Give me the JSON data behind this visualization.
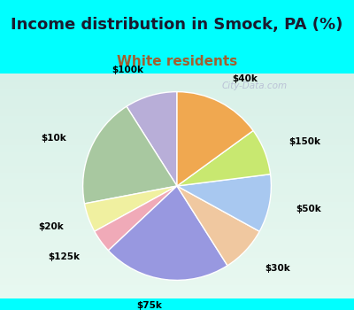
{
  "title": "Income distribution in Smock, PA (%)",
  "subtitle": "White residents",
  "title_fontsize": 13,
  "subtitle_fontsize": 11,
  "bg_color": "#00FFFF",
  "chart_bg_top": "#d8f0e8",
  "chart_bg_bottom": "#e8f8f0",
  "labels": [
    "$100k",
    "$10k",
    "$20k",
    "$125k",
    "$75k",
    "$30k",
    "$50k",
    "$150k",
    "$40k"
  ],
  "values": [
    9,
    19,
    5,
    4,
    22,
    8,
    10,
    8,
    15
  ],
  "colors": [
    "#b8aed8",
    "#a8c8a0",
    "#f0f0a0",
    "#f0aab8",
    "#9898e0",
    "#f0c8a0",
    "#a8c8f0",
    "#c8e870",
    "#f0a850"
  ],
  "startangle": 90,
  "label_distance": 1.28,
  "watermark": "City-Data.com"
}
